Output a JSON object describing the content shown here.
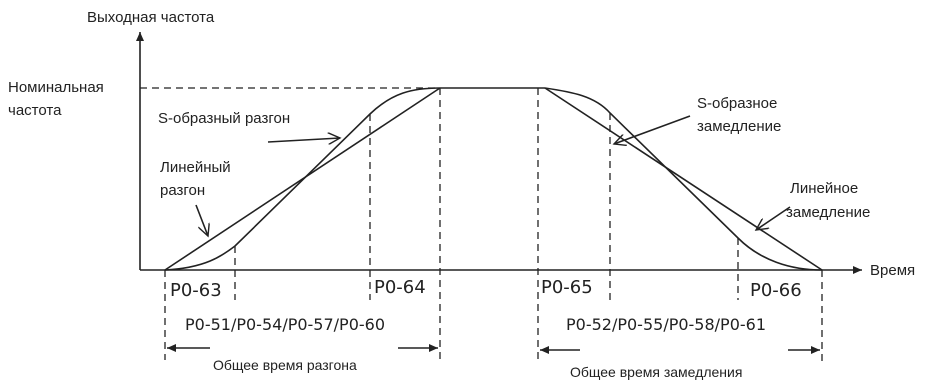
{
  "labels": {
    "y_axis": "Выходная частота",
    "x_axis": "Время",
    "nominal_line1": "Номинальная",
    "nominal_line2": "частота",
    "s_accel": "S-образный разгон",
    "s_decel_line1": "S-образное",
    "s_decel_line2": "замедление",
    "linear_accel_line1": "Линейный",
    "linear_accel_line2": "разгон",
    "linear_decel_line1": "Линейное",
    "linear_decel_line2": "замедление"
  },
  "params": {
    "p63": "P0-63",
    "p64": "P0-64",
    "p65": "P0-65",
    "p66": "P0-66",
    "accel_group": "P0-51/P0-54/P0-57/P0-60",
    "decel_group": "P0-52/P0-55/P0-58/P0-61"
  },
  "totals": {
    "accel": "Общее время разгона",
    "decel": "Общее время замедления"
  }
}
